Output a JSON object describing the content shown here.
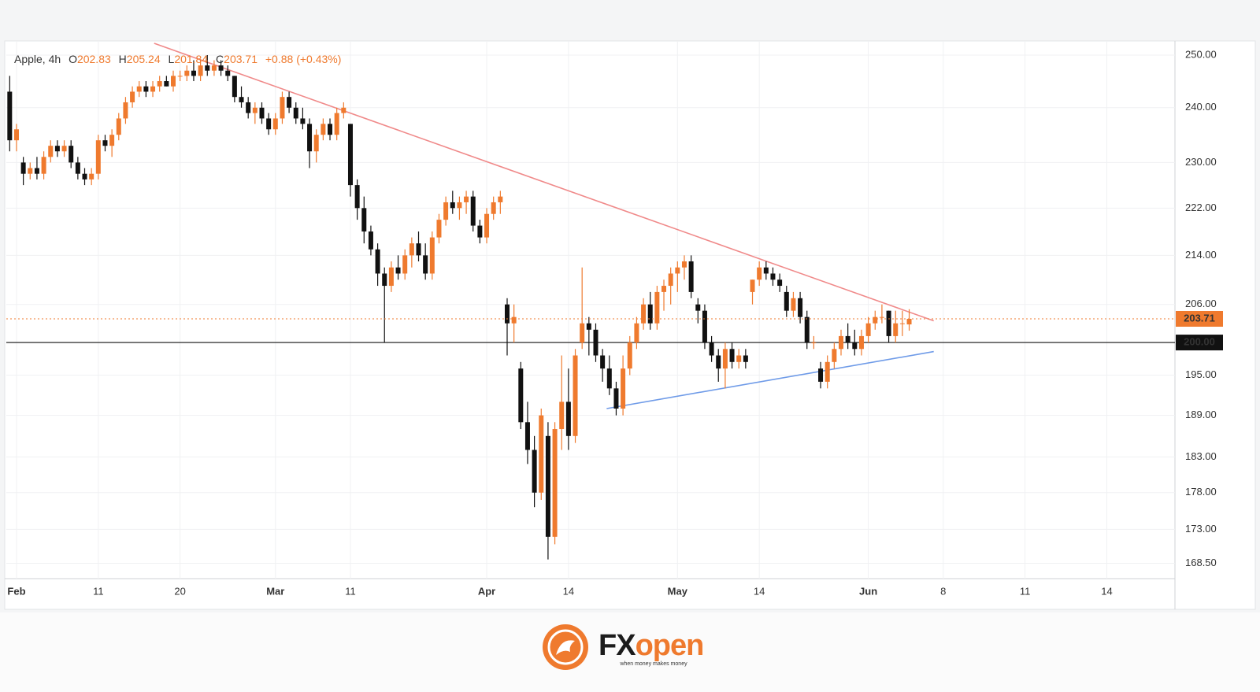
{
  "chart_data": {
    "type": "candlestick",
    "symbol": "Apple, 4h",
    "ohlc_prefixes": [
      "O",
      "H",
      "L",
      "C"
    ],
    "change_label": "+0.88 (+0.43%)",
    "up_color": "#ef7a2e",
    "down_color": "#111111",
    "log_scale": true,
    "grid": true,
    "ylim": [
      166.5,
      252.3
    ],
    "yticks": [
      {
        "value": 250,
        "label": "250.00"
      },
      {
        "value": 240,
        "label": "240.00"
      },
      {
        "value": 230,
        "label": "230.00"
      },
      {
        "value": 222,
        "label": "222.00"
      },
      {
        "value": 214,
        "label": "214.00"
      },
      {
        "value": 206,
        "label": "206.00"
      },
      {
        "value": 195,
        "label": "195.00"
      },
      {
        "value": 189,
        "label": "189.00"
      },
      {
        "value": 183,
        "label": "183.00"
      },
      {
        "value": 178,
        "label": "178.00"
      },
      {
        "value": 173,
        "label": "173.00"
      },
      {
        "value": 168.5,
        "label": "168.50"
      }
    ],
    "xlim": [
      -0.5,
      171
    ],
    "xticks": [
      {
        "value": 1,
        "label": "Feb"
      },
      {
        "value": 13,
        "label": "11"
      },
      {
        "value": 25,
        "label": "20"
      },
      {
        "value": 39,
        "label": "Mar"
      },
      {
        "value": 50,
        "label": "11"
      },
      {
        "value": 70,
        "label": "Apr"
      },
      {
        "value": 82,
        "label": "14"
      },
      {
        "value": 98,
        "label": "May"
      },
      {
        "value": 110,
        "label": "14"
      },
      {
        "value": 126,
        "label": "Jun"
      },
      {
        "value": 137,
        "label": "8"
      },
      {
        "value": 149,
        "label": "11"
      },
      {
        "value": 161,
        "label": "14"
      }
    ],
    "level": {
      "value": 200,
      "label": "200.00",
      "color": "#111111"
    },
    "trendlines": [
      {
        "color": "#f08a8a",
        "points": [
          [
            21.2,
            252.3
          ],
          [
            135.6,
            203.4
          ]
        ]
      },
      {
        "color": "#6f9be8",
        "points": [
          [
            87.6,
            190.0
          ],
          [
            135.6,
            198.6
          ]
        ]
      }
    ],
    "candles": [
      [
        243,
        246,
        232,
        234
      ],
      [
        234,
        237,
        232,
        236
      ],
      [
        230,
        231,
        226,
        228
      ],
      [
        228,
        230,
        227,
        229
      ],
      [
        229,
        231,
        227,
        228
      ],
      [
        228,
        232,
        227,
        231
      ],
      [
        231,
        234,
        230,
        233
      ],
      [
        233,
        234,
        231,
        232
      ],
      [
        232,
        234,
        231,
        233
      ],
      [
        233,
        234,
        229,
        230
      ],
      [
        230,
        231,
        227,
        228
      ],
      [
        228,
        229,
        226,
        227
      ],
      [
        227,
        229,
        226,
        228
      ],
      [
        228,
        235,
        227,
        234
      ],
      [
        234,
        235,
        232,
        233
      ],
      [
        233,
        236,
        231,
        235
      ],
      [
        235,
        239,
        234,
        238
      ],
      [
        238,
        242,
        237,
        241
      ],
      [
        241,
        244,
        240,
        243
      ],
      [
        243,
        245,
        242,
        244
      ],
      [
        244,
        245,
        242,
        243
      ],
      [
        243,
        245,
        242,
        244
      ],
      [
        244,
        246,
        243,
        245
      ],
      [
        245,
        246,
        244,
        244
      ],
      [
        244,
        247,
        243,
        246
      ],
      [
        246,
        247,
        245,
        246
      ],
      [
        246,
        248,
        245,
        247
      ],
      [
        247,
        249,
        245,
        246
      ],
      [
        246,
        249,
        245,
        248
      ],
      [
        248,
        250,
        246,
        247
      ],
      [
        247,
        249,
        246,
        248
      ],
      [
        248,
        249,
        246,
        247
      ],
      [
        247,
        248,
        245,
        246
      ],
      [
        246,
        246,
        241,
        242
      ],
      [
        242,
        244,
        240,
        241
      ],
      [
        241,
        242,
        238,
        239
      ],
      [
        239,
        241,
        237,
        240
      ],
      [
        240,
        241,
        237,
        238
      ],
      [
        238,
        239,
        235,
        236
      ],
      [
        236,
        239,
        235,
        238
      ],
      [
        238,
        243,
        237,
        242
      ],
      [
        242,
        243,
        239,
        240
      ],
      [
        240,
        241,
        237,
        238
      ],
      [
        238,
        240,
        236,
        237
      ],
      [
        237,
        238,
        229,
        232
      ],
      [
        232,
        236,
        230,
        235
      ],
      [
        235,
        238,
        234,
        237
      ],
      [
        237,
        238,
        234,
        235
      ],
      [
        235,
        240,
        234,
        239
      ],
      [
        239,
        241,
        238,
        240
      ],
      [
        237,
        237,
        224,
        226
      ],
      [
        226,
        227,
        220,
        222
      ],
      [
        222,
        224,
        216,
        218
      ],
      [
        218,
        219,
        214,
        215
      ],
      [
        215,
        216,
        209,
        211
      ],
      [
        211,
        212,
        200,
        209
      ],
      [
        209,
        213,
        208,
        212
      ],
      [
        212,
        214,
        210,
        211
      ],
      [
        211,
        215,
        210,
        214
      ],
      [
        214,
        217,
        212,
        216
      ],
      [
        216,
        218,
        213,
        214
      ],
      [
        214,
        216,
        210,
        211
      ],
      [
        211,
        218,
        210,
        217
      ],
      [
        217,
        221,
        216,
        220
      ],
      [
        220,
        224,
        219,
        223
      ],
      [
        223,
        225,
        221,
        222
      ],
      [
        222,
        224,
        220,
        223
      ],
      [
        223,
        225,
        221,
        224
      ],
      [
        224,
        225,
        218,
        219
      ],
      [
        219,
        220,
        216,
        217
      ],
      [
        217,
        222,
        216,
        221
      ],
      [
        221,
        224,
        220,
        223
      ],
      [
        223,
        225,
        221,
        224
      ],
      [
        206,
        207,
        198,
        203
      ],
      [
        203,
        206,
        200,
        204
      ],
      [
        196,
        197,
        187,
        188
      ],
      [
        188,
        191,
        182,
        184
      ],
      [
        184,
        186,
        176,
        178
      ],
      [
        178,
        190,
        177,
        189
      ],
      [
        186,
        188,
        169,
        172
      ],
      [
        172,
        188,
        171,
        187
      ],
      [
        187,
        198,
        184,
        191
      ],
      [
        191,
        196,
        184,
        186
      ],
      [
        186,
        199,
        185,
        198
      ],
      [
        200,
        212,
        199,
        203
      ],
      [
        203,
        204,
        198,
        202
      ],
      [
        202,
        203,
        197,
        198
      ],
      [
        198,
        199,
        194,
        196
      ],
      [
        196,
        198,
        192,
        193
      ],
      [
        193,
        194,
        189,
        190
      ],
      [
        190,
        198,
        189,
        196
      ],
      [
        196,
        201,
        195,
        200
      ],
      [
        200,
        204,
        199,
        203
      ],
      [
        203,
        207,
        202,
        206
      ],
      [
        206,
        208,
        202,
        203
      ],
      [
        203,
        209,
        202,
        208
      ],
      [
        208,
        210,
        205,
        209
      ],
      [
        209,
        212,
        206,
        211
      ],
      [
        211,
        213,
        208,
        212
      ],
      [
        212,
        214,
        210,
        213
      ],
      [
        213,
        214,
        207,
        208
      ],
      [
        206,
        207,
        203,
        205
      ],
      [
        205,
        206,
        199,
        200
      ],
      [
        200,
        201,
        197,
        198
      ],
      [
        198,
        199,
        194,
        196
      ],
      [
        196,
        200,
        193,
        199
      ],
      [
        199,
        200,
        196,
        197
      ],
      [
        197,
        199,
        196,
        198
      ],
      [
        198,
        199,
        196,
        197
      ],
      [
        208,
        210,
        206,
        210
      ],
      [
        210,
        213,
        209,
        212
      ],
      [
        212,
        213,
        210,
        211
      ],
      [
        211,
        212,
        209,
        210
      ],
      [
        210,
        211,
        208,
        209
      ],
      [
        208,
        209,
        204,
        205
      ],
      [
        205,
        208,
        204,
        207
      ],
      [
        207,
        208,
        203,
        204
      ],
      [
        204,
        205,
        199,
        200
      ],
      [
        200,
        201,
        199,
        200
      ],
      [
        196,
        197,
        193,
        194
      ],
      [
        194,
        198,
        193,
        197
      ],
      [
        197,
        200,
        196,
        199
      ],
      [
        199,
        202,
        198,
        201
      ],
      [
        201,
        203,
        199,
        200
      ],
      [
        200,
        202,
        198,
        199
      ],
      [
        199,
        202,
        198,
        201
      ],
      [
        201,
        204,
        200,
        203
      ],
      [
        203,
        205,
        202,
        204
      ],
      [
        204,
        206,
        203,
        204
      ],
      [
        205,
        205,
        200,
        201
      ],
      [
        201,
        205,
        200,
        203
      ],
      [
        203,
        205,
        201,
        203
      ],
      [
        202.83,
        205.24,
        201.84,
        203.71
      ]
    ]
  },
  "brand": {
    "parts": [
      "FX",
      "open"
    ],
    "tagline": "when money makes money"
  }
}
